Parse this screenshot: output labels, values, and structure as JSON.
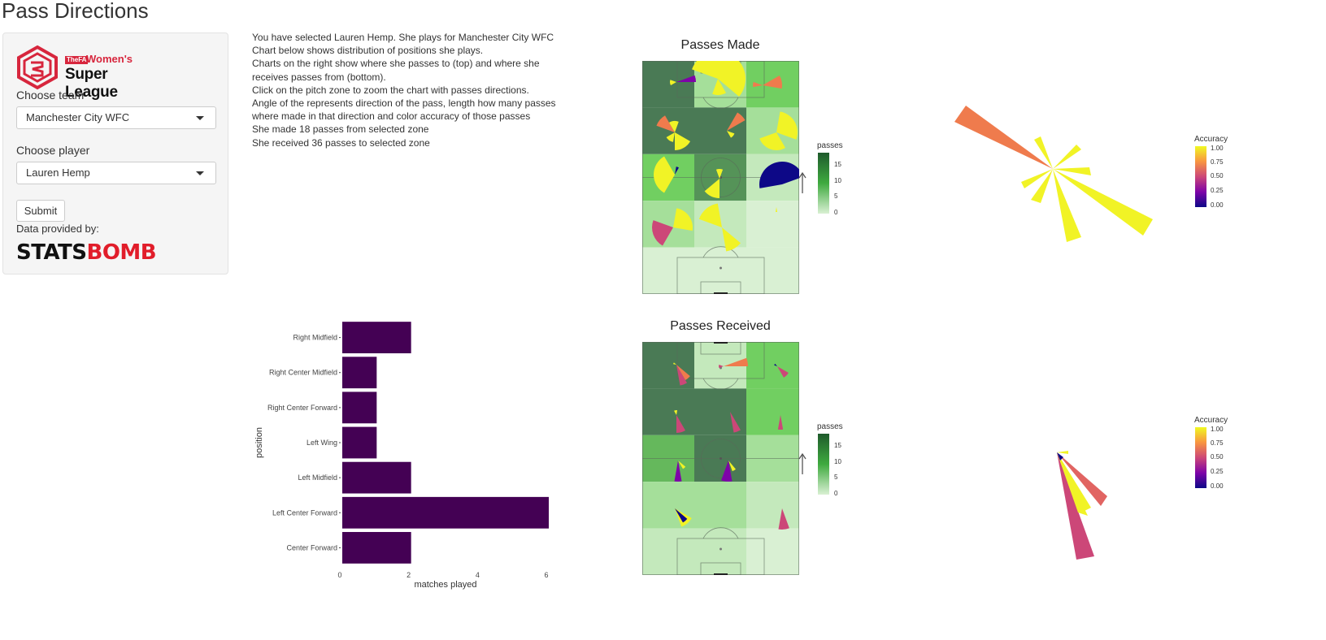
{
  "page": {
    "title": "Pass Directions"
  },
  "sidebar": {
    "logo": {
      "fa": "TheFA",
      "womens": "Women's",
      "league": "Super League"
    },
    "team_label": "Choose team",
    "team_value": "Manchester City WFC",
    "player_label": "Choose player",
    "player_value": "Lauren Hemp",
    "submit_label": "Submit",
    "provided_label": "Data provided by:",
    "provider": {
      "part1": "STATS",
      "part2": "BOMB"
    }
  },
  "info": {
    "lines": [
      "You have selected Lauren Hemp. She plays for Manchester City WFC",
      "Chart below shows distribution of positions she plays.",
      "Charts on the right show where she passes to (top) and where she",
      "receives passes from (bottom).",
      "Click on the pitch zone to zoom the chart with passes directions.",
      "Angle of the represents direction of the pass, length how many passes",
      "where made in that direction and color accuracy of those passes",
      "She made 18 passes from selected zone",
      "She received 36 passes to selected zone"
    ]
  },
  "colors": {
    "bar": "#440154",
    "pitch_low": "#d9f0d3",
    "pitch_high": "#4a7a55"
  },
  "chart_data": [
    {
      "type": "bar",
      "orientation": "horizontal",
      "categories": [
        "Right Midfield",
        "Right Center Midfield",
        "Right Center Forward",
        "Left Wing",
        "Left Midfield",
        "Left Center Forward",
        "Center Forward"
      ],
      "values": [
        2,
        1,
        1,
        1,
        2,
        6,
        2
      ],
      "xlabel": "matches played",
      "ylabel": "position",
      "xticks": [
        "0",
        "2",
        "4",
        "6"
      ],
      "xlim": [
        0,
        6
      ]
    },
    {
      "type": "heatmap",
      "title": "Passes Made",
      "grid": {
        "rows": 5,
        "cols": 3
      },
      "values": [
        [
          17,
          5,
          10
        ],
        [
          17,
          17,
          5
        ],
        [
          10,
          15,
          2
        ],
        [
          5,
          2,
          0
        ],
        [
          0,
          0,
          0
        ]
      ],
      "legend": {
        "title": "passes",
        "ticks": [
          "15",
          "10",
          "5",
          "0"
        ]
      }
    },
    {
      "type": "heatmap",
      "title": "Passes Received",
      "grid": {
        "rows": 5,
        "cols": 3
      },
      "values": [
        [
          17,
          2,
          10
        ],
        [
          17,
          17,
          10
        ],
        [
          12,
          17,
          5
        ],
        [
          5,
          5,
          2
        ],
        [
          2,
          2,
          0
        ]
      ],
      "legend": {
        "title": "passes",
        "ticks": [
          "15",
          "10",
          "5",
          "0"
        ]
      }
    }
  ],
  "accuracy_legend": {
    "title": "Accuracy",
    "ticks": [
      "1.00",
      "0.75",
      "0.50",
      "0.25",
      "0.00"
    ]
  }
}
